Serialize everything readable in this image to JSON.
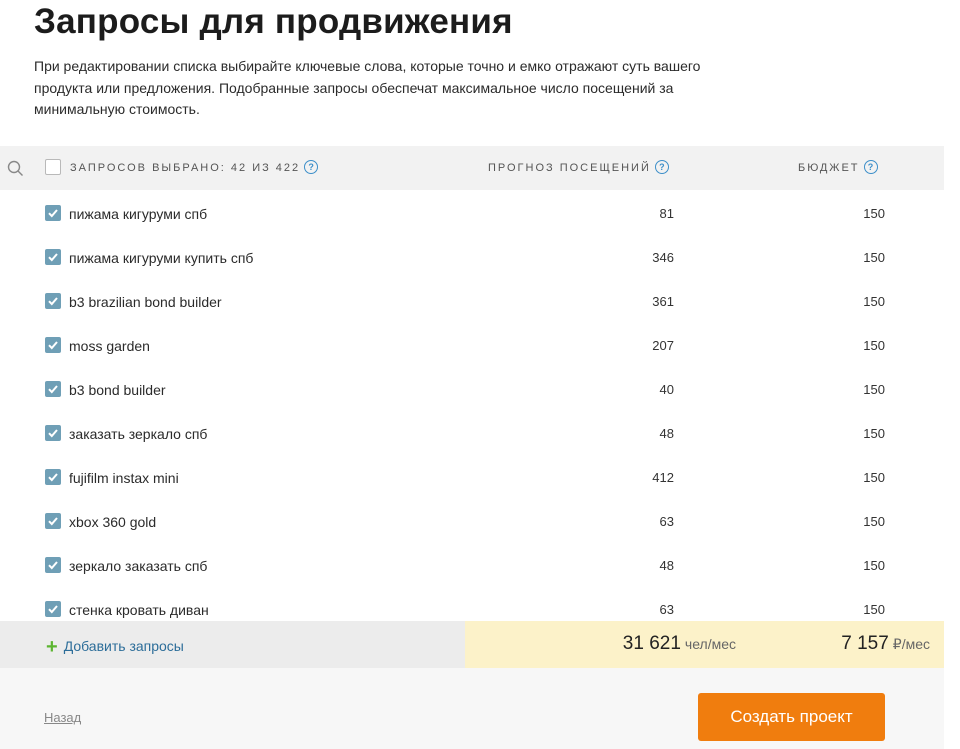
{
  "page": {
    "title": "Запросы для продвижения",
    "description": "При редактировании списка выбирайте ключевые слова, которые точно и емко отражают суть вашего продукта или предложения. Подобранные запросы обеспечат максимальное число посещений за минимальную стоимость."
  },
  "table": {
    "selected_label": "Запросов выбрано: 42 из 422",
    "visits_header": "Прогноз посещений",
    "budget_header": "Бюджет",
    "help_glyph": "?",
    "rows": [
      {
        "keyword": "пижама кигуруми спб",
        "visits": "81",
        "budget": "150",
        "checked": true
      },
      {
        "keyword": "пижама кигуруми купить спб",
        "visits": "346",
        "budget": "150",
        "checked": true
      },
      {
        "keyword": "b3 brazilian bond builder",
        "visits": "361",
        "budget": "150",
        "checked": true
      },
      {
        "keyword": "moss garden",
        "visits": "207",
        "budget": "150",
        "checked": true
      },
      {
        "keyword": "b3 bond builder",
        "visits": "40",
        "budget": "150",
        "checked": true
      },
      {
        "keyword": "заказать зеркало спб",
        "visits": "48",
        "budget": "150",
        "checked": true
      },
      {
        "keyword": "fujifilm instax mini",
        "visits": "412",
        "budget": "150",
        "checked": true
      },
      {
        "keyword": "xbox 360 gold",
        "visits": "63",
        "budget": "150",
        "checked": true
      },
      {
        "keyword": "зеркало заказать спб",
        "visits": "48",
        "budget": "150",
        "checked": true
      },
      {
        "keyword": "стенка кровать диван",
        "visits": "63",
        "budget": "150",
        "checked": true
      }
    ]
  },
  "footer": {
    "add_label": "Добавить запросы",
    "add_glyph": "+",
    "total_visits": "31 621",
    "total_visits_unit": "чел/мес",
    "total_budget": "7 157",
    "total_budget_unit": "₽/мес",
    "back_label": "Назад",
    "create_label": "Создать проект"
  },
  "colors": {
    "accent": "#f07d0e",
    "checkbox": "#6f9fb6",
    "totals_bg": "#fcf2c9",
    "link": "#2c6d99",
    "plus": "#5cb531"
  },
  "icons": {
    "search": "search-icon",
    "help": "help-icon",
    "check": "check-icon",
    "plus": "plus-icon"
  }
}
